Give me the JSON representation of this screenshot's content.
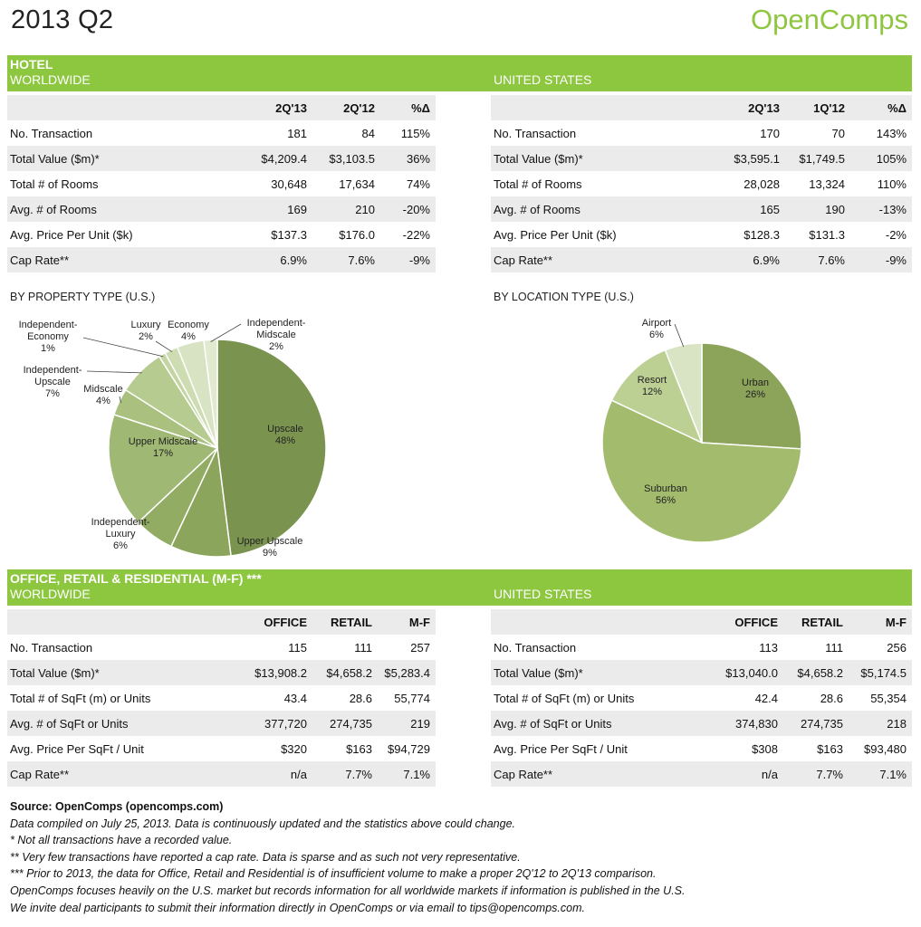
{
  "header": {
    "title": "2013 Q2",
    "brand": "OpenComps"
  },
  "hotel": {
    "band_title": "HOTEL",
    "worldwide": {
      "label": "WORLDWIDE",
      "columns": [
        "",
        "2Q'13",
        "2Q'12",
        "%Δ"
      ],
      "rows": [
        [
          "No. Transaction",
          "181",
          "84",
          "115%"
        ],
        [
          "Total Value ($m)*",
          "$4,209.4",
          "$3,103.5",
          "36%"
        ],
        [
          "Total # of Rooms",
          "30,648",
          "17,634",
          "74%"
        ],
        [
          "Avg. # of Rooms",
          "169",
          "210",
          "-20%"
        ],
        [
          "Avg. Price Per Unit ($k)",
          "$137.3",
          "$176.0",
          "-22%"
        ],
        [
          "Cap Rate**",
          "6.9%",
          "7.6%",
          "-9%"
        ]
      ]
    },
    "us": {
      "label": "UNITED STATES",
      "columns": [
        "",
        "2Q'13",
        "1Q'12",
        "%Δ"
      ],
      "rows": [
        [
          "No. Transaction",
          "170",
          "70",
          "143%"
        ],
        [
          "Total Value ($m)*",
          "$3,595.1",
          "$1,749.5",
          "105%"
        ],
        [
          "Total # of Rooms",
          "28,028",
          "13,324",
          "110%"
        ],
        [
          "Avg. # of Rooms",
          "165",
          "190",
          "-13%"
        ],
        [
          "Avg. Price Per Unit ($k)",
          "$128.3",
          "$131.3",
          "-2%"
        ],
        [
          "Cap Rate**",
          "6.9%",
          "7.6%",
          "-9%"
        ]
      ]
    }
  },
  "charts": {
    "property_label": "BY PROPERTY TYPE (U.S.)",
    "location_label": "BY LOCATION TYPE (U.S.)"
  },
  "chart_data": [
    {
      "type": "pie",
      "title": "BY PROPERTY TYPE (U.S.)",
      "slices": [
        {
          "label": "Upscale",
          "value": 48,
          "pct": "48%",
          "color": "#7a9450"
        },
        {
          "label": "Upper Upscale",
          "value": 9,
          "pct": "9%",
          "color": "#8ba55d"
        },
        {
          "label": "Independent-Luxury",
          "value": 6,
          "pct": "6%",
          "color": "#92ac63"
        },
        {
          "label": "Upper Midscale",
          "value": 17,
          "pct": "17%",
          "color": "#9fb874"
        },
        {
          "label": "Midscale",
          "value": 4,
          "pct": "4%",
          "color": "#a9c07f"
        },
        {
          "label": "Independent-Upscale",
          "value": 7,
          "pct": "7%",
          "color": "#b6cb8f"
        },
        {
          "label": "Independent-Economy",
          "value": 1,
          "pct": "1%",
          "color": "#c4d5a3"
        },
        {
          "label": "Luxury",
          "value": 2,
          "pct": "2%",
          "color": "#cedcb2"
        },
        {
          "label": "Economy",
          "value": 4,
          "pct": "4%",
          "color": "#d7e3c2"
        },
        {
          "label": "Independent-Midscale",
          "value": 2,
          "pct": "2%",
          "color": "#e1eacf"
        }
      ]
    },
    {
      "type": "pie",
      "title": "BY LOCATION TYPE (U.S.)",
      "slices": [
        {
          "label": "Urban",
          "value": 26,
          "pct": "26%",
          "color": "#8ca35a"
        },
        {
          "label": "Suburban",
          "value": 56,
          "pct": "56%",
          "color": "#a3bb6d"
        },
        {
          "label": "Resort",
          "value": 12,
          "pct": "12%",
          "color": "#bcd094"
        },
        {
          "label": "Airport",
          "value": 6,
          "pct": "6%",
          "color": "#d9e4c4"
        }
      ]
    }
  ],
  "orr": {
    "band_title": "OFFICE, RETAIL & RESIDENTIAL (M-F) ***",
    "worldwide": {
      "label": "WORLDWIDE",
      "columns": [
        "",
        "OFFICE",
        "RETAIL",
        "M-F"
      ],
      "rows": [
        [
          "No. Transaction",
          "115",
          "111",
          "257"
        ],
        [
          "Total Value ($m)*",
          "$13,908.2",
          "$4,658.2",
          "$5,283.4"
        ],
        [
          "Total # of SqFt (m) or Units",
          "43.4",
          "28.6",
          "55,774"
        ],
        [
          "Avg. # of SqFt or Units",
          "377,720",
          "274,735",
          "219"
        ],
        [
          "Avg. Price Per SqFt / Unit",
          "$320",
          "$163",
          "$94,729"
        ],
        [
          "Cap Rate**",
          "n/a",
          "7.7%",
          "7.1%"
        ]
      ]
    },
    "us": {
      "label": "UNITED STATES",
      "columns": [
        "",
        "OFFICE",
        "RETAIL",
        "M-F"
      ],
      "rows": [
        [
          "No. Transaction",
          "113",
          "111",
          "256"
        ],
        [
          "Total Value ($m)*",
          "$13,040.0",
          "$4,658.2",
          "$5,174.5"
        ],
        [
          "Total # of SqFt (m) or Units",
          "42.4",
          "28.6",
          "55,354"
        ],
        [
          "Avg. # of SqFt or Units",
          "374,830",
          "274,735",
          "218"
        ],
        [
          "Avg. Price Per SqFt / Unit",
          "$308",
          "$163",
          "$93,480"
        ],
        [
          "Cap Rate**",
          "n/a",
          "7.7%",
          "7.1%"
        ]
      ]
    }
  },
  "footer": {
    "source": "Source: OpenComps (opencomps.com)",
    "lines": [
      "Data compiled on July 25, 2013. Data is continuously updated and the statistics above could change.",
      "* Not all transactions have a recorded value.",
      "** Very few transactions have reported a cap rate. Data is sparse and as such not very representative.",
      "*** Prior to 2013, the data for Office, Retail and Residential is of insufficient volume to make a proper 2Q'12 to 2Q'13 comparison.",
      "OpenComps focuses heavily on the U.S. market but records information for all worldwide markets if information is published in the U.S.",
      "We invite deal participants to submit their information directly in OpenComps or via email to tips@opencomps.com."
    ]
  }
}
